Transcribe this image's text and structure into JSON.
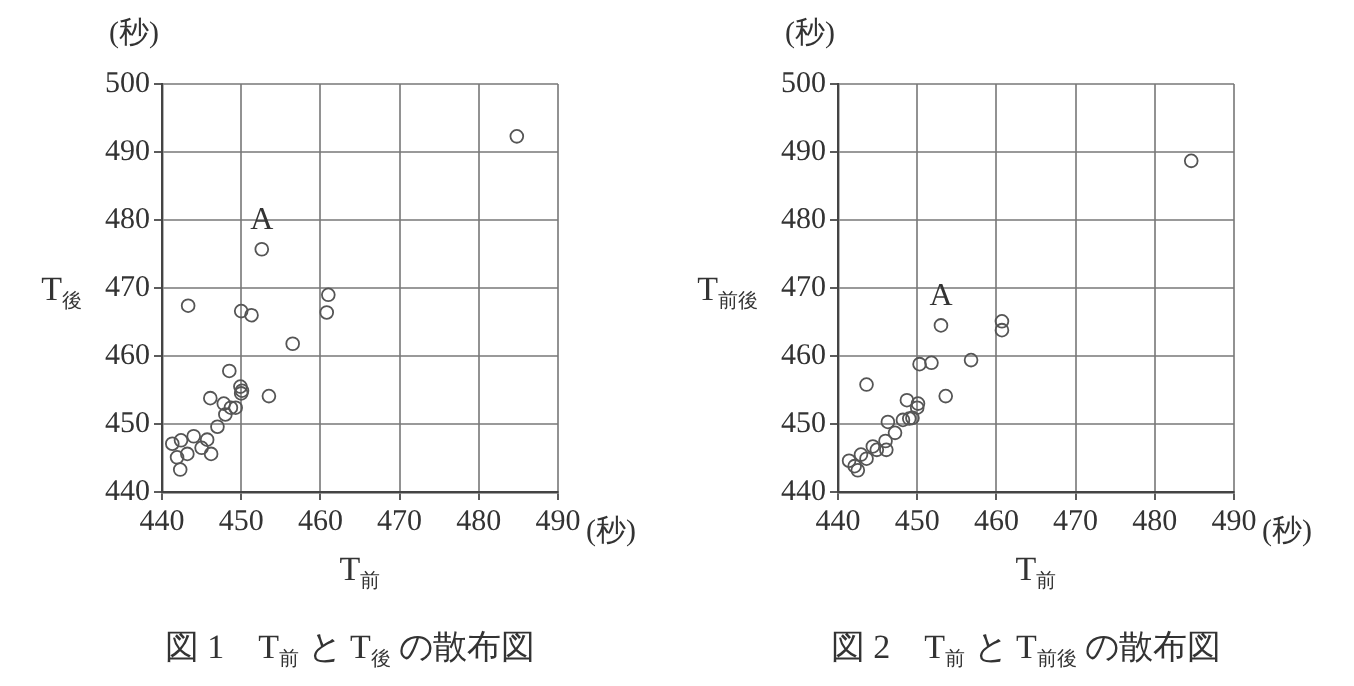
{
  "chart_data": [
    {
      "type": "scatter",
      "title": "図 1　T$_{前}$ と T$_{後}$ の散布図",
      "xlabel": "T$_{前}$",
      "ylabel": "T$_{後}$",
      "xlim": [
        440,
        490
      ],
      "ylim": [
        440,
        500
      ],
      "xticks": [
        440,
        450,
        460,
        470,
        480,
        490
      ],
      "yticks": [
        440,
        450,
        460,
        470,
        480,
        490,
        500
      ],
      "grid": true,
      "marker": "circle",
      "annotations": [
        "(秒)",
        "(秒)",
        {
          "text": "A",
          "x": 452.6,
          "y": 475.7
        }
      ],
      "series": [
        {
          "color": "#555555",
          "x": [
            484.8,
            452.6,
            443.3,
            450.0,
            451.3,
            461.0,
            460.8,
            456.5,
            448.5,
            449.9,
            450.1,
            450.0,
            453.5,
            446.1,
            447.8,
            448.7,
            449.3,
            448.0,
            447.0,
            441.3,
            442.4,
            444.0,
            445.7,
            445.0,
            441.9,
            443.2,
            446.2,
            442.3
          ],
          "values": [
            492.3,
            475.7,
            467.4,
            466.6,
            466.0,
            469.0,
            466.4,
            461.8,
            457.8,
            455.5,
            454.9,
            454.5,
            454.1,
            453.8,
            453.0,
            452.4,
            452.4,
            451.4,
            449.6,
            447.1,
            447.6,
            448.2,
            447.7,
            446.5,
            445.1,
            445.6,
            445.6,
            443.3
          ]
        }
      ]
    },
    {
      "type": "scatter",
      "title": "図 2　T$_{前}$ と T$_{前後}$ の散布図",
      "xlabel": "T$_{前}$",
      "ylabel": "T$_{前後}$",
      "xlim": [
        440,
        490
      ],
      "ylim": [
        440,
        500
      ],
      "xticks": [
        440,
        450,
        460,
        470,
        480,
        490
      ],
      "yticks": [
        440,
        450,
        460,
        470,
        480,
        490,
        500
      ],
      "grid": true,
      "marker": "circle",
      "annotations": [
        "(秒)",
        "(秒)",
        {
          "text": "A",
          "x": 453.0,
          "y": 464.5
        }
      ],
      "series": [
        {
          "color": "#555555",
          "x": [
            484.6,
            453.0,
            460.7,
            460.7,
            456.8,
            450.3,
            451.8,
            443.6,
            453.6,
            448.7,
            450.1,
            450.0,
            449.4,
            448.2,
            446.3,
            449.0,
            447.2,
            446.0,
            444.4,
            444.9,
            446.1,
            442.9,
            441.4,
            443.6,
            442.1,
            442.5
          ],
          "values": [
            488.7,
            464.5,
            465.1,
            463.8,
            459.4,
            458.8,
            459.0,
            455.8,
            454.1,
            453.5,
            453.0,
            452.4,
            450.9,
            450.6,
            450.3,
            450.8,
            448.7,
            447.5,
            446.7,
            446.2,
            446.2,
            445.5,
            444.6,
            444.9,
            443.8,
            443.2
          ]
        }
      ]
    }
  ]
}
